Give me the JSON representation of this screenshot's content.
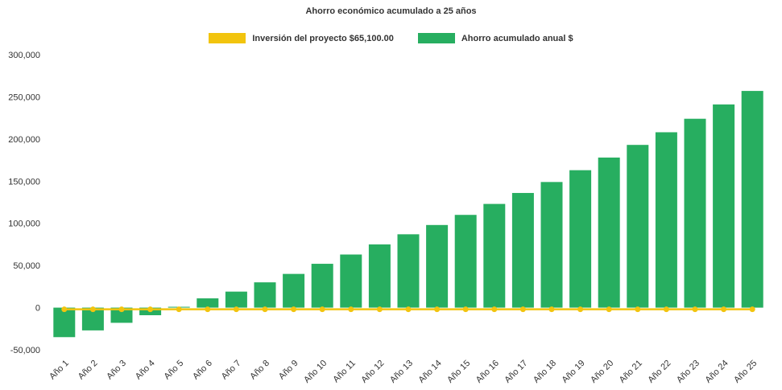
{
  "chart_data": {
    "type": "bar",
    "title": "Ahorro económico acumulado a 25 años",
    "categories": [
      "Año 1",
      "Año 2",
      "Año 3",
      "Año 4",
      "Año 5",
      "Año 6",
      "Año 7",
      "Año 8",
      "Año 9",
      "Año 10",
      "Año 11",
      "Año 12",
      "Año 13",
      "Año 14",
      "Año 15",
      "Año 16",
      "Año 17",
      "Año 18",
      "Año 19",
      "Año 20",
      "Año 21",
      "Año 22",
      "Año 23",
      "Año 24",
      "Año 25"
    ],
    "series": [
      {
        "name": "Inversión del proyecto $65,100.00",
        "type": "line",
        "color": "#F2C40E",
        "values": [
          -2000,
          -2000,
          -2000,
          -2000,
          -2000,
          -2000,
          -2000,
          -2000,
          -2000,
          -2000,
          -2000,
          -2000,
          -2000,
          -2000,
          -2000,
          -2000,
          -2000,
          -2000,
          -2000,
          -2000,
          -2000,
          -2000,
          -2000,
          -2000,
          -2000
        ]
      },
      {
        "name": "Ahorro acumulado anual $",
        "type": "bar",
        "color": "#27AE60",
        "values": [
          -35000,
          -27000,
          -18000,
          -9000,
          1000,
          11000,
          19000,
          30000,
          40000,
          52000,
          63000,
          75000,
          87000,
          98000,
          110000,
          123000,
          136000,
          149000,
          163000,
          178000,
          193000,
          208000,
          224000,
          241000,
          257000
        ]
      }
    ],
    "xlabel": "",
    "ylabel": "",
    "ylim": [
      -50000,
      300000
    ],
    "ytick_interval": 50000,
    "ytick_labels": [
      "300,000",
      "250,000",
      "200,000",
      "150,000",
      "100,000",
      "50,000",
      "0",
      "-50,000"
    ],
    "grid": false,
    "legend_position": "top-center"
  },
  "colors": {
    "text": "#333333",
    "background": "#FFFFFF"
  }
}
